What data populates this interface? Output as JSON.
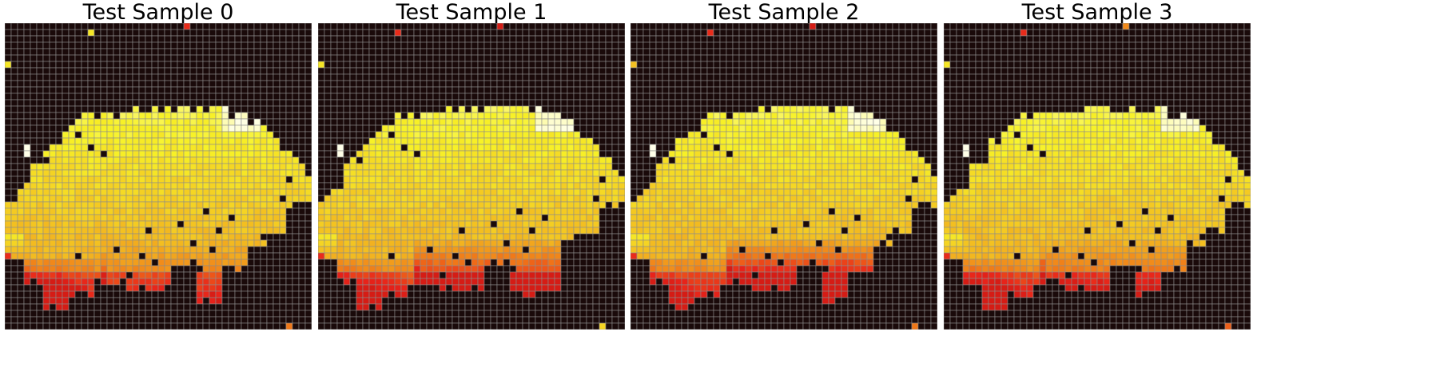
{
  "figure": {
    "panel_titles": [
      "Test Sample 0",
      "Test Sample 1",
      "Test Sample 2",
      "Test Sample 3"
    ]
  },
  "colors": {
    "background": "#1a0a0a",
    "grid_line": "#8c8c8c",
    "colormap": "hot",
    "colormap_stops": [
      "#000000",
      "#8b0000",
      "#e8231a",
      "#f07818",
      "#f2b51f",
      "#f7f227",
      "#ffffe8"
    ]
  },
  "chart_data": [
    {
      "type": "heatmap",
      "title": "Test Sample 0",
      "rows": 48,
      "cols": 48,
      "value_range": [
        0,
        1
      ],
      "stray_cells": [
        {
          "row": 0,
          "col": 28,
          "value": 0.35
        },
        {
          "row": 1,
          "col": 13,
          "value": 0.8
        },
        {
          "row": 6,
          "col": 0,
          "value": 0.8
        },
        {
          "row": 19,
          "col": 3,
          "value": 1.0
        },
        {
          "row": 20,
          "col": 3,
          "value": 1.0
        },
        {
          "row": 47,
          "col": 44,
          "value": 0.5
        }
      ],
      "blob": {
        "top_row": 13,
        "bottom_row": 46,
        "left_col": 0,
        "right_col": 47,
        "lower_left_heat_strength": 0.55,
        "lower_right_heat_strength": 0.2
      },
      "regions": {
        "hot_core": "upper-right",
        "cooler_rim": "bottom"
      }
    },
    {
      "type": "heatmap",
      "title": "Test Sample 1",
      "rows": 48,
      "cols": 48,
      "value_range": [
        0,
        1
      ],
      "stray_cells": [
        {
          "row": 1,
          "col": 12,
          "value": 0.35
        },
        {
          "row": 0,
          "col": 28,
          "value": 0.3
        },
        {
          "row": 6,
          "col": 0,
          "value": 0.8
        },
        {
          "row": 19,
          "col": 3,
          "value": 1.0
        },
        {
          "row": 20,
          "col": 3,
          "value": 1.0
        },
        {
          "row": 47,
          "col": 44,
          "value": 0.75
        }
      ],
      "blob": {
        "top_row": 13,
        "bottom_row": 46,
        "left_col": 0,
        "right_col": 47,
        "lower_left_heat_strength": 0.45,
        "lower_right_heat_strength": 0.5
      },
      "regions": {
        "hot_core": "upper-right",
        "cooler_rim": "bottom"
      }
    },
    {
      "type": "heatmap",
      "title": "Test Sample 2",
      "rows": 48,
      "cols": 48,
      "value_range": [
        0,
        1
      ],
      "stray_cells": [
        {
          "row": 1,
          "col": 12,
          "value": 0.35
        },
        {
          "row": 0,
          "col": 28,
          "value": 0.3
        },
        {
          "row": 6,
          "col": 0,
          "value": 0.7
        },
        {
          "row": 19,
          "col": 3,
          "value": 1.0
        },
        {
          "row": 20,
          "col": 3,
          "value": 1.0
        },
        {
          "row": 47,
          "col": 44,
          "value": 0.5
        }
      ],
      "blob": {
        "top_row": 13,
        "bottom_row": 46,
        "left_col": 0,
        "right_col": 47,
        "lower_left_heat_strength": 0.4,
        "lower_right_heat_strength": 0.65
      },
      "regions": {
        "hot_core": "upper-right",
        "cooler_rim": "bottom"
      }
    },
    {
      "type": "heatmap",
      "title": "Test Sample 3",
      "rows": 48,
      "cols": 48,
      "value_range": [
        0,
        1
      ],
      "stray_cells": [
        {
          "row": 1,
          "col": 12,
          "value": 0.35
        },
        {
          "row": 0,
          "col": 28,
          "value": 0.55
        },
        {
          "row": 6,
          "col": 0,
          "value": 0.8
        },
        {
          "row": 19,
          "col": 3,
          "value": 1.0
        },
        {
          "row": 20,
          "col": 3,
          "value": 1.0
        },
        {
          "row": 47,
          "col": 44,
          "value": 0.45
        }
      ],
      "blob": {
        "top_row": 13,
        "bottom_row": 46,
        "left_col": 0,
        "right_col": 47,
        "lower_left_heat_strength": 0.5,
        "lower_right_heat_strength": 0.3
      },
      "regions": {
        "hot_core": "upper-right",
        "cooler_rim": "bottom"
      }
    }
  ]
}
